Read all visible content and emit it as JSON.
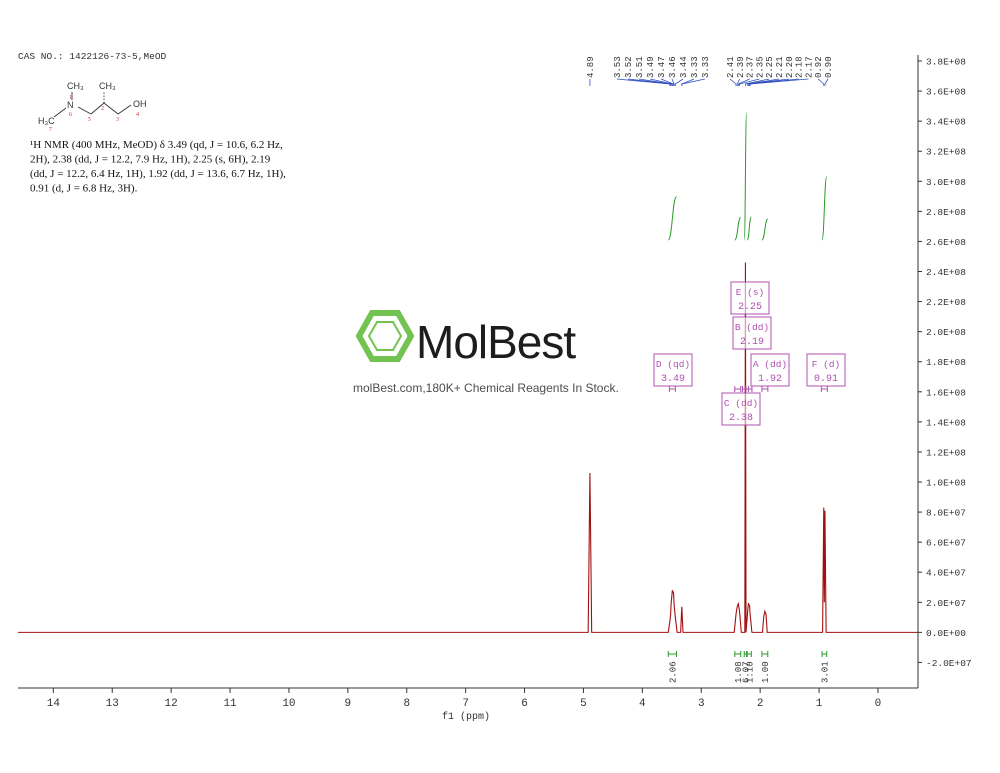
{
  "chart_data": {
    "type": "line",
    "cas": "CAS NO.: 1422126-73-5,MeOD",
    "structure_labels": [
      "CH₃",
      "N",
      "H₃C",
      "CH₃",
      "OH"
    ],
    "atom_numbers": [
      "1",
      "6",
      "7",
      "5",
      "2",
      "3",
      "4"
    ],
    "description": [
      "¹H NMR (400 MHz, MeOD) δ 3.49 (qd, J = 10.6, 6.2 Hz,",
      "2H), 2.38 (dd, J = 12.2, 7.9 Hz, 1H), 2.25 (s, 6H), 2.19",
      "(dd, J = 12.2, 6.4 Hz, 1H), 1.92 (dd, J = 13.6, 6.7 Hz, 1H),",
      "0.91 (d, J = 6.8 Hz, 3H)."
    ],
    "watermark": "MolBest",
    "watermark_note": "molBest.com,180K+ Chemical Reagents In Stock.",
    "xlabel": "f1 (ppm)",
    "xlim": [
      14.6,
      -0.68
    ],
    "xticks": [
      14,
      13,
      12,
      11,
      10,
      9,
      8,
      7,
      6,
      5,
      4,
      3,
      2,
      1,
      0
    ],
    "ylim": [
      -37000000,
      384000000
    ],
    "yticks": [
      {
        "value": -20000000,
        "label": "-2.0E+07"
      },
      {
        "value": 0,
        "label": "0.0E+00"
      },
      {
        "value": 20000000,
        "label": "2.0E+07"
      },
      {
        "value": 40000000,
        "label": "4.0E+07"
      },
      {
        "value": 60000000,
        "label": "6.0E+07"
      },
      {
        "value": 80000000,
        "label": "8.0E+07"
      },
      {
        "value": 100000000,
        "label": "1.0E+08"
      },
      {
        "value": 120000000,
        "label": "1.2E+08"
      },
      {
        "value": 140000000,
        "label": "1.4E+08"
      },
      {
        "value": 160000000,
        "label": "1.6E+08"
      },
      {
        "value": 180000000,
        "label": "1.8E+08"
      },
      {
        "value": 200000000,
        "label": "2.0E+08"
      },
      {
        "value": 220000000,
        "label": "2.2E+08"
      },
      {
        "value": 240000000,
        "label": "2.4E+08"
      },
      {
        "value": 260000000,
        "label": "2.6E+08"
      },
      {
        "value": 280000000,
        "label": "2.8E+08"
      },
      {
        "value": 300000000,
        "label": "3.0E+08"
      },
      {
        "value": 320000000,
        "label": "3.2E+08"
      },
      {
        "value": 340000000,
        "label": "3.4E+08"
      },
      {
        "value": 360000000,
        "label": "3.6E+08"
      },
      {
        "value": 380000000,
        "label": "3.8E+08"
      }
    ],
    "series": [
      {
        "color": "#a01010",
        "x": [
          14.6,
          4.92,
          4.89,
          4.86,
          3.56,
          3.53,
          3.52,
          3.51,
          3.49,
          3.47,
          3.46,
          3.44,
          3.41,
          3.35,
          3.33,
          3.31,
          2.44,
          2.41,
          2.39,
          2.37,
          2.35,
          2.32,
          2.26,
          2.25,
          2.24,
          2.21,
          2.2,
          2.18,
          2.17,
          2.14,
          1.96,
          1.94,
          1.92,
          1.9,
          1.88,
          0.94,
          0.92,
          0.91,
          0.9,
          0.88,
          -0.68
        ],
        "values": [
          0,
          0,
          106000000,
          0,
          0,
          8000000,
          12000000,
          20000000,
          28000000,
          26000000,
          18000000,
          10000000,
          0,
          0,
          17000000,
          0,
          0,
          12000000,
          17000000,
          19000000,
          14000000,
          0,
          0,
          246000000,
          0,
          15000000,
          19000000,
          18000000,
          12000000,
          0,
          0,
          10000000,
          14000000,
          12000000,
          0,
          0,
          83000000,
          20000000,
          81000000,
          0,
          0
        ]
      }
    ],
    "peak_labels": [
      4.89,
      3.53,
      3.52,
      3.51,
      {
        "value": 3.49,
        "label": "3.49"
      },
      3.47,
      3.46,
      3.44,
      3.33,
      3.33,
      2.41,
      2.39,
      2.37,
      2.35,
      2.25,
      2.21,
      {
        "value": 2.2,
        "label": "2.20"
      },
      2.18,
      2.17,
      0.92,
      {
        "value": 0.9,
        "label": "0.90"
      }
    ],
    "integral_color": "#2a9a2a",
    "integrals": [
      {
        "range": [
          3.56,
          3.42
        ],
        "value": 2.06
      },
      {
        "range": [
          2.43,
          2.33
        ],
        "value": 1.08
      },
      {
        "range": [
          2.27,
          2.23
        ],
        "value": 6.07
      },
      {
        "range": [
          2.22,
          2.15
        ],
        "value": {
          "value": 1.1,
          "label": "1.10"
        }
      },
      {
        "range": [
          1.97,
          1.87
        ],
        "value": {
          "value": 1,
          "label": "1.00"
        }
      },
      {
        "range": [
          0.95,
          0.87
        ],
        "value": 3.01
      }
    ],
    "multiplets": [
      {
        "label": "D (qd)",
        "shift": 3.49
      },
      {
        "label": "E (s)",
        "shift": 2.25
      },
      {
        "label": "B (dd)",
        "shift": 2.19
      },
      {
        "label": "A (dd)",
        "shift": 1.92
      },
      {
        "label": "C (dd)",
        "shift": 2.38
      },
      {
        "label": "F (d)",
        "shift": 0.91
      }
    ]
  }
}
